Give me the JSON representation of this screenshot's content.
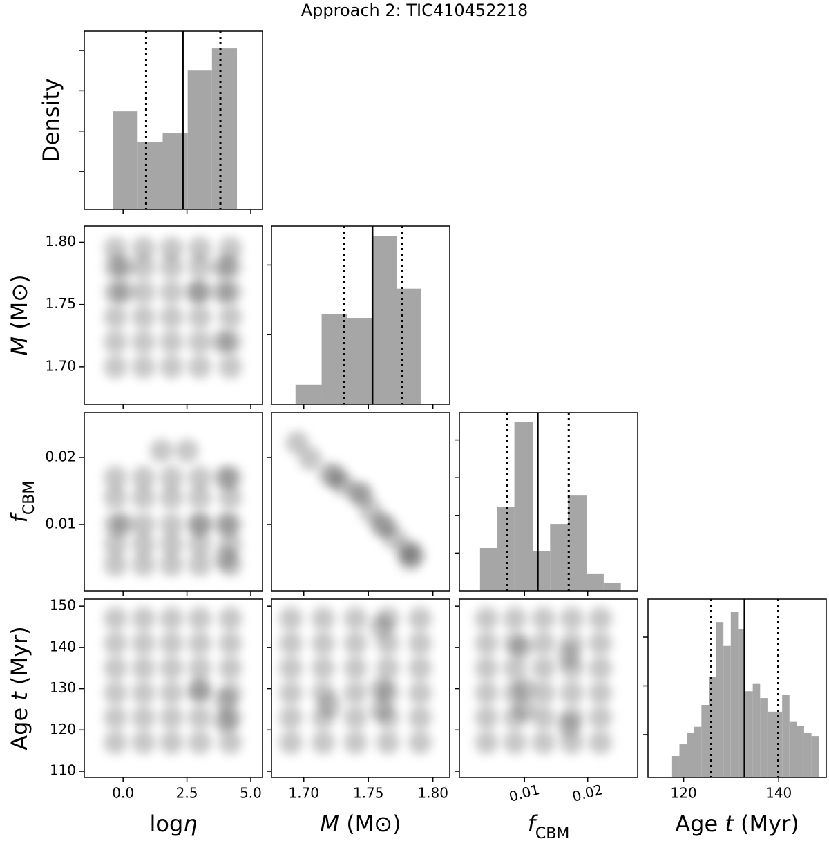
{
  "title": "Approach 2: TIC410452218",
  "chart_data": [
    {
      "type": "histogram",
      "ylabel": {
        "parts": [
          "Density"
        ],
        "styles": [
          "normal"
        ]
      },
      "bins": [
        -0.41,
        0.57,
        1.55,
        2.53,
        3.48,
        4.46
      ],
      "values": [
        0.1245,
        0.0864,
        0.0972,
        0.175,
        0.2025
      ],
      "xlim": [
        -1.52,
        5.46
      ],
      "xticks": [
        {
          "value": 0,
          "label": "0.0"
        },
        2.5,
        {
          "value": 5,
          "label": "5.0"
        }
      ],
      "ylim": [
        0.003,
        0.224
      ],
      "yticks": [
        0.05,
        0.1,
        0.15,
        0.2
      ],
      "median": 2.34,
      "interval": [
        0.9,
        3.81
      ],
      "color": "#a6a6a6"
    },
    {
      "type": "scatter",
      "ylabel": {
        "parts": [
          "M",
          " (M⊙)"
        ],
        "styles": [
          "italic",
          "normal"
        ]
      },
      "x": [
        -0.3,
        0.8,
        1.9,
        3.0,
        4.2,
        -0.3,
        0.8,
        1.9,
        3.0,
        4.2,
        -0.3,
        0.8,
        1.9,
        3.0,
        4.2,
        -0.3,
        0.8,
        1.9,
        3.0,
        4.2,
        -0.3,
        0.8,
        1.9,
        3.0,
        4.2,
        -0.3,
        0.8,
        1.9,
        3.0,
        4.2,
        0,
        0,
        2.9,
        3.9,
        3.9,
        3.9
      ],
      "y": [
        1.7,
        1.7,
        1.7,
        1.7,
        1.7,
        1.72,
        1.72,
        1.72,
        1.72,
        1.72,
        1.74,
        1.74,
        1.74,
        1.74,
        1.74,
        1.76,
        1.76,
        1.76,
        1.76,
        1.76,
        1.78,
        1.78,
        1.78,
        1.78,
        1.78,
        1.795,
        1.795,
        1.795,
        1.795,
        1.795,
        1.76,
        1.78,
        1.76,
        1.72,
        1.78,
        1.76
      ],
      "xlim": [
        -1.52,
        5.46
      ],
      "xticks": [
        {
          "value": 0,
          "label": "0.0"
        },
        2.5,
        {
          "value": 5,
          "label": "5.0"
        }
      ],
      "ylim": [
        1.67,
        1.813
      ],
      "yticks": [
        {
          "value": 1.7,
          "label": "1.70"
        },
        1.75,
        {
          "value": 1.8,
          "label": "1.80"
        }
      ],
      "color": "#000000"
    },
    {
      "type": "histogram",
      "bins": [
        1.6936,
        1.7138,
        1.7335,
        1.7537,
        1.7723,
        1.791
      ],
      "values": [
        2.8,
        13.0,
        12.4,
        24.2,
        16.6
      ],
      "xlim": [
        1.675,
        1.813
      ],
      "xticks": [
        {
          "value": 1.7,
          "label": "1.70"
        },
        1.75,
        {
          "value": 1.8,
          "label": "1.80"
        }
      ],
      "ylim": [
        0,
        25.6
      ],
      "yticks": [
        10,
        20
      ],
      "median": 1.7532,
      "interval": [
        1.7309,
        1.7761
      ],
      "color": "#a6a6a6"
    },
    {
      "type": "scatter",
      "ylabel": {
        "parts": [
          "f",
          "CBM"
        ],
        "styles": [
          "italic",
          "sub"
        ]
      },
      "x": [
        -0.3,
        0.8,
        1.9,
        3.0,
        4.2,
        -0.3,
        0.8,
        1.9,
        3.0,
        4.2,
        -0.3,
        0.8,
        1.9,
        3.0,
        4.2,
        -0.3,
        0.8,
        1.9,
        3.0,
        4.2,
        -0.3,
        0.8,
        1.9,
        3.0,
        4.2,
        1.5,
        2.5,
        0,
        3,
        4,
        4,
        4
      ],
      "y": [
        0.004,
        0.004,
        0.004,
        0.004,
        0.004,
        0.007,
        0.007,
        0.007,
        0.007,
        0.007,
        0.01,
        0.01,
        0.01,
        0.01,
        0.01,
        0.014,
        0.014,
        0.014,
        0.014,
        0.014,
        0.017,
        0.017,
        0.017,
        0.017,
        0.017,
        0.021,
        0.021,
        0.01,
        0.01,
        0.017,
        0.01,
        0.005
      ],
      "xlim": [
        -1.52,
        5.46
      ],
      "xticks": [
        {
          "value": 0,
          "label": "0.0"
        },
        2.5,
        {
          "value": 5,
          "label": "5.0"
        }
      ],
      "ylim": [
        0.0001,
        0.0267
      ],
      "yticks": [
        0.01,
        0.02
      ],
      "color": "#000000"
    },
    {
      "type": "scatter",
      "x": [
        1.695,
        1.705,
        1.72,
        1.725,
        1.73,
        1.742,
        1.745,
        1.752,
        1.76,
        1.763,
        1.77,
        1.78,
        1.782,
        1.785
      ],
      "y": [
        0.0222,
        0.0198,
        0.0175,
        0.0172,
        0.016,
        0.0148,
        0.0143,
        0.012,
        0.01,
        0.0098,
        0.008,
        0.0062,
        0.0048,
        0.0055
      ],
      "xlim": [
        1.675,
        1.813
      ],
      "xticks": [
        {
          "value": 1.7,
          "label": "1.70"
        },
        1.75,
        {
          "value": 1.8,
          "label": "1.80"
        }
      ],
      "ylim": [
        0.0001,
        0.0267
      ],
      "yticks": [
        0.01,
        0.02
      ],
      "color": "#000000"
    },
    {
      "type": "histogram",
      "bins": [
        0.00296,
        0.00568,
        0.0084,
        0.01133,
        0.01405,
        0.01687,
        0.01981,
        0.02253,
        0.02524
      ],
      "values": [
        22.7,
        44.7,
        89.4,
        20.9,
        35.5,
        50.5,
        9.2,
        4.4
      ],
      "xlim": [
        -0.0003,
        0.0279
      ],
      "xticks": [
        0.01,
        0.02
      ],
      "ylim": [
        0,
        94.5
      ],
      "yticks": [
        20,
        40,
        60,
        80
      ],
      "median": 0.0121,
      "interval": [
        0.0072,
        0.017
      ],
      "color": "#a6a6a6"
    },
    {
      "type": "scatter",
      "ylabel": {
        "parts": [
          "Age ",
          "t",
          " (Myr)"
        ],
        "styles": [
          "normal",
          "italic",
          "normal"
        ]
      },
      "xlabel": {
        "parts": [
          "log",
          "η"
        ],
        "styles": [
          "normal",
          "italic"
        ]
      },
      "x": [
        -0.3,
        0.8,
        1.9,
        3.0,
        4.2,
        -0.3,
        0.8,
        1.9,
        3.0,
        4.2,
        -0.3,
        0.8,
        1.9,
        3.0,
        4.2,
        -0.3,
        0.8,
        1.9,
        3.0,
        4.2,
        -0.3,
        0.8,
        1.9,
        3.0,
        4.2,
        -0.3,
        0.8,
        1.9,
        3.0,
        4.2,
        3,
        4,
        4
      ],
      "y": [
        117,
        117,
        117,
        117,
        117,
        123,
        123,
        123,
        123,
        123,
        129,
        129,
        129,
        129,
        129,
        135,
        135,
        135,
        135,
        135,
        141,
        141,
        141,
        141,
        141,
        147,
        147,
        147,
        147,
        147,
        130,
        127,
        122
      ],
      "xlim": [
        -1.52,
        5.46
      ],
      "xticks": [
        {
          "value": 0,
          "label": "0.0"
        },
        2.5,
        {
          "value": 5,
          "label": "5.0"
        }
      ],
      "ylim": [
        108.5,
        151.7
      ],
      "yticks": [
        110,
        120,
        130,
        140,
        150
      ],
      "color": "#000000"
    },
    {
      "type": "scatter",
      "xlabel": {
        "parts": [
          "M",
          " (M⊙)"
        ],
        "styles": [
          "italic",
          "normal"
        ]
      },
      "x": [
        1.69,
        1.715,
        1.74,
        1.765,
        1.79,
        1.69,
        1.715,
        1.74,
        1.765,
        1.79,
        1.69,
        1.715,
        1.74,
        1.765,
        1.79,
        1.69,
        1.715,
        1.74,
        1.765,
        1.79,
        1.69,
        1.715,
        1.74,
        1.765,
        1.79,
        1.69,
        1.715,
        1.74,
        1.765,
        1.79,
        1.76,
        1.76,
        1.72,
        1.76
      ],
      "y": [
        117,
        117,
        117,
        117,
        117,
        123,
        123,
        123,
        123,
        123,
        129,
        129,
        129,
        129,
        129,
        135,
        135,
        135,
        135,
        135,
        141,
        141,
        141,
        141,
        141,
        147,
        147,
        147,
        147,
        147,
        130,
        125,
        126,
        145
      ],
      "xlim": [
        1.675,
        1.813
      ],
      "xticks": [
        {
          "value": 1.7,
          "label": "1.70"
        },
        1.75,
        {
          "value": 1.8,
          "label": "1.80"
        }
      ],
      "ylim": [
        108.5,
        151.7
      ],
      "yticks": [
        110,
        120,
        130,
        140,
        150
      ],
      "color": "#000000"
    },
    {
      "type": "scatter",
      "xlabel": {
        "parts": [
          "f",
          "CBM"
        ],
        "styles": [
          "italic",
          "sub"
        ]
      },
      "xtick_rotation": 15,
      "x": [
        0.004,
        0.0085,
        0.013,
        0.0175,
        0.022,
        0.004,
        0.0085,
        0.013,
        0.0175,
        0.022,
        0.004,
        0.0085,
        0.013,
        0.0175,
        0.022,
        0.004,
        0.0085,
        0.013,
        0.0175,
        0.022,
        0.004,
        0.0085,
        0.013,
        0.0175,
        0.022,
        0.004,
        0.0085,
        0.013,
        0.0175,
        0.022,
        0.01,
        0.01,
        0.017,
        0.017,
        0.0095
      ],
      "y": [
        117,
        117,
        117,
        117,
        117,
        123,
        123,
        123,
        123,
        123,
        129,
        129,
        129,
        129,
        129,
        135,
        135,
        135,
        135,
        135,
        141,
        141,
        141,
        141,
        141,
        147,
        147,
        147,
        147,
        147,
        130,
        125,
        121,
        138,
        140
      ],
      "xlim": [
        -0.0003,
        0.0279
      ],
      "xticks": [
        0.01,
        0.02
      ],
      "ylim": [
        108.5,
        151.7
      ],
      "yticks": [
        110,
        120,
        130,
        140,
        150
      ],
      "color": "#000000"
    },
    {
      "type": "histogram",
      "xlabel": {
        "parts": [
          "Age ",
          "t",
          " (Myr)"
        ],
        "styles": [
          "normal",
          "italic",
          "normal"
        ]
      },
      "bins": [
        117.57,
        119.11,
        120.66,
        122.2,
        123.74,
        125.29,
        126.83,
        128.37,
        129.91,
        131.46,
        133.0,
        134.54,
        136.09,
        137.63,
        139.17,
        140.72,
        142.26,
        143.8,
        145.34,
        146.89,
        148.43
      ],
      "values": [
        0.0056,
        0.008,
        0.0104,
        0.0116,
        0.0161,
        0.0218,
        0.0331,
        0.0282,
        0.0352,
        0.0317,
        0.0189,
        0.0204,
        0.0175,
        0.0147,
        0.0147,
        0.0182,
        0.0126,
        0.0118,
        0.0104,
        0.0097
      ],
      "xlim": [
        112.5,
        150
      ],
      "xticks": [
        120,
        140
      ],
      "ylim": [
        0.0012,
        0.0378
      ],
      "yticks": [
        0.01,
        0.02,
        0.03
      ],
      "median": 132.8,
      "interval": [
        125.8,
        139.9
      ],
      "color": "#a6a6a6"
    }
  ]
}
